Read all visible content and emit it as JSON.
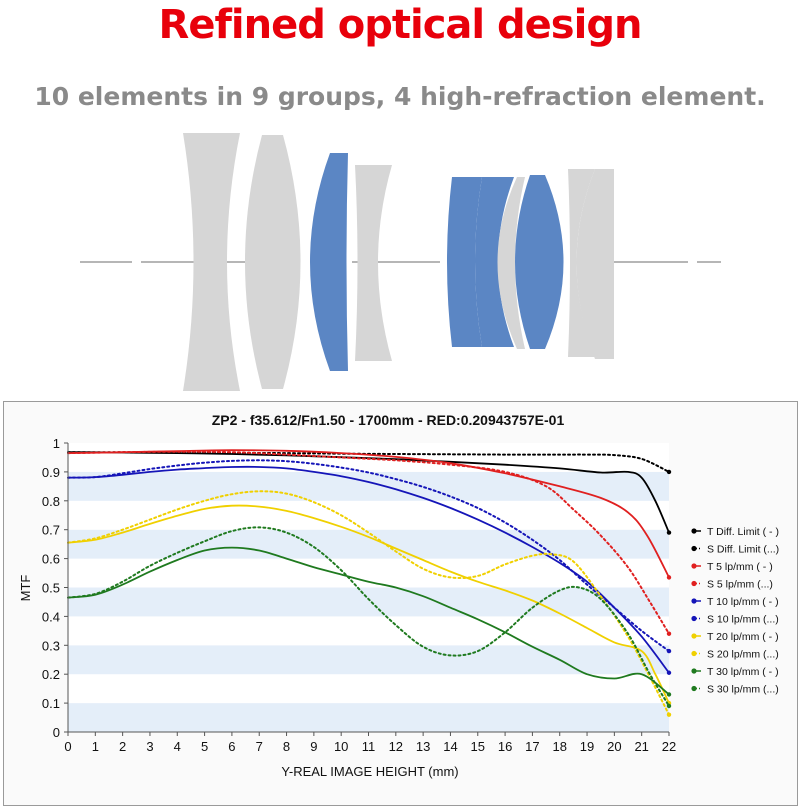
{
  "header": {
    "title": "Refined optical design",
    "subtitle": "10 elements in 9 groups, 4 high-refraction element."
  },
  "colors": {
    "title_red": "#e8000b",
    "subtitle_gray": "#8a8a8a",
    "lens_gray": "#d6d6d6",
    "lens_blue": "#5b86c4",
    "band_light_blue": "#e4eef9"
  },
  "lens_diagram": {
    "element_count": 10,
    "group_count": 9,
    "high_refraction_count": 4
  },
  "chart_data": {
    "type": "line",
    "title": "ZP2 - f35.612/Fn1.50 - 1700mm - RED:0.20943757E-01",
    "xlabel": "Y-REAL IMAGE HEIGHT (mm)",
    "ylabel": "MTF",
    "xlim": [
      0,
      22
    ],
    "ylim": [
      0,
      1
    ],
    "x_ticks": [
      "0",
      "1",
      "2",
      "3",
      "4",
      "5",
      "6",
      "7",
      "8",
      "9",
      "10",
      "11",
      "12",
      "13",
      "14",
      "15",
      "16",
      "17",
      "18",
      "19",
      "20",
      "21",
      "22"
    ],
    "y_ticks": [
      "0",
      "0.1",
      "0.2",
      "0.3",
      "0.4",
      "0.5",
      "0.6",
      "0.7",
      "0.8",
      "0.9",
      "1"
    ],
    "grid": "horizontal bands",
    "legend_position": "right",
    "series": [
      {
        "name": "T Diff. Limit ( - )",
        "color": "#000000",
        "dash": "solid",
        "points": [
          [
            0,
            0.968
          ],
          [
            2,
            0.967
          ],
          [
            4,
            0.965
          ],
          [
            6,
            0.962
          ],
          [
            8,
            0.957
          ],
          [
            10,
            0.951
          ],
          [
            12,
            0.944
          ],
          [
            14,
            0.935
          ],
          [
            16,
            0.925
          ],
          [
            18,
            0.912
          ],
          [
            19.5,
            0.898
          ],
          [
            20.5,
            0.9
          ],
          [
            21,
            0.88
          ],
          [
            21.5,
            0.8
          ],
          [
            22,
            0.69
          ]
        ]
      },
      {
        "name": "S Diff. Limit (...)",
        "color": "#000000",
        "dash": "dotted",
        "points": [
          [
            0,
            0.968
          ],
          [
            2,
            0.968
          ],
          [
            4,
            0.967
          ],
          [
            6,
            0.966
          ],
          [
            8,
            0.965
          ],
          [
            10,
            0.963
          ],
          [
            12,
            0.962
          ],
          [
            14,
            0.961
          ],
          [
            16,
            0.96
          ],
          [
            18,
            0.96
          ],
          [
            19,
            0.96
          ],
          [
            20,
            0.958
          ],
          [
            21,
            0.945
          ],
          [
            22,
            0.9
          ]
        ]
      },
      {
        "name": "T 5 lp/mm ( - )",
        "color": "#e02020",
        "dash": "solid",
        "points": [
          [
            0,
            0.965
          ],
          [
            2,
            0.968
          ],
          [
            4,
            0.972
          ],
          [
            6,
            0.975
          ],
          [
            8,
            0.973
          ],
          [
            10,
            0.965
          ],
          [
            12,
            0.952
          ],
          [
            14,
            0.93
          ],
          [
            16,
            0.895
          ],
          [
            18,
            0.85
          ],
          [
            19.5,
            0.81
          ],
          [
            20.5,
            0.76
          ],
          [
            21.2,
            0.68
          ],
          [
            22,
            0.535
          ]
        ]
      },
      {
        "name": "S 5 lp/mm (...)",
        "color": "#e02020",
        "dash": "dotted",
        "points": [
          [
            0,
            0.965
          ],
          [
            2,
            0.968
          ],
          [
            4,
            0.97
          ],
          [
            6,
            0.968
          ],
          [
            8,
            0.96
          ],
          [
            10,
            0.95
          ],
          [
            12,
            0.94
          ],
          [
            14,
            0.925
          ],
          [
            16,
            0.9
          ],
          [
            17.5,
            0.85
          ],
          [
            18.5,
            0.77
          ],
          [
            19.5,
            0.68
          ],
          [
            20.5,
            0.57
          ],
          [
            21.3,
            0.45
          ],
          [
            22,
            0.34
          ]
        ]
      },
      {
        "name": "T 10 lp/mm ( - )",
        "color": "#1515b8",
        "dash": "solid",
        "points": [
          [
            0,
            0.88
          ],
          [
            1,
            0.882
          ],
          [
            2,
            0.89
          ],
          [
            3,
            0.9
          ],
          [
            4,
            0.908
          ],
          [
            5,
            0.913
          ],
          [
            6,
            0.917
          ],
          [
            7,
            0.917
          ],
          [
            8,
            0.912
          ],
          [
            9,
            0.9
          ],
          [
            10,
            0.885
          ],
          [
            11,
            0.865
          ],
          [
            12,
            0.84
          ],
          [
            13,
            0.81
          ],
          [
            14,
            0.775
          ],
          [
            15,
            0.735
          ],
          [
            16,
            0.69
          ],
          [
            17,
            0.64
          ],
          [
            18,
            0.585
          ],
          [
            19,
            0.52
          ],
          [
            20,
            0.43
          ],
          [
            21,
            0.33
          ],
          [
            22,
            0.205
          ]
        ]
      },
      {
        "name": "S 10 lp/mm (...)",
        "color": "#1515b8",
        "dash": "dotted",
        "points": [
          [
            0,
            0.88
          ],
          [
            1,
            0.882
          ],
          [
            2,
            0.895
          ],
          [
            3,
            0.91
          ],
          [
            4,
            0.922
          ],
          [
            5,
            0.932
          ],
          [
            6,
            0.938
          ],
          [
            7,
            0.94
          ],
          [
            8,
            0.937
          ],
          [
            9,
            0.928
          ],
          [
            10,
            0.915
          ],
          [
            11,
            0.898
          ],
          [
            12,
            0.875
          ],
          [
            13,
            0.848
          ],
          [
            14,
            0.815
          ],
          [
            15,
            0.775
          ],
          [
            16,
            0.725
          ],
          [
            17,
            0.665
          ],
          [
            18,
            0.595
          ],
          [
            19,
            0.51
          ],
          [
            20,
            0.43
          ],
          [
            21,
            0.35
          ],
          [
            22,
            0.28
          ]
        ]
      },
      {
        "name": "T 20 lp/mm ( - )",
        "color": "#f0d000",
        "dash": "solid",
        "points": [
          [
            0,
            0.655
          ],
          [
            1,
            0.665
          ],
          [
            2,
            0.69
          ],
          [
            3,
            0.72
          ],
          [
            4,
            0.748
          ],
          [
            5,
            0.772
          ],
          [
            6,
            0.783
          ],
          [
            7,
            0.78
          ],
          [
            8,
            0.765
          ],
          [
            9,
            0.74
          ],
          [
            10,
            0.71
          ],
          [
            11,
            0.675
          ],
          [
            12,
            0.635
          ],
          [
            13,
            0.595
          ],
          [
            14,
            0.555
          ],
          [
            15,
            0.52
          ],
          [
            16,
            0.49
          ],
          [
            17,
            0.455
          ],
          [
            18,
            0.41
          ],
          [
            19,
            0.36
          ],
          [
            20,
            0.31
          ],
          [
            21,
            0.28
          ],
          [
            21.5,
            0.2
          ],
          [
            22,
            0.1
          ]
        ]
      },
      {
        "name": "S 20 lp/mm (...)",
        "color": "#f0d000",
        "dash": "dotted",
        "points": [
          [
            0,
            0.655
          ],
          [
            1,
            0.67
          ],
          [
            2,
            0.7
          ],
          [
            3,
            0.735
          ],
          [
            4,
            0.77
          ],
          [
            5,
            0.8
          ],
          [
            6,
            0.823
          ],
          [
            7,
            0.833
          ],
          [
            8,
            0.825
          ],
          [
            9,
            0.795
          ],
          [
            10,
            0.75
          ],
          [
            11,
            0.69
          ],
          [
            12,
            0.625
          ],
          [
            13,
            0.565
          ],
          [
            14,
            0.535
          ],
          [
            15,
            0.54
          ],
          [
            16,
            0.58
          ],
          [
            17,
            0.61
          ],
          [
            17.7,
            0.615
          ],
          [
            18.5,
            0.59
          ],
          [
            19.5,
            0.47
          ],
          [
            20.5,
            0.33
          ],
          [
            21.3,
            0.19
          ],
          [
            22,
            0.06
          ]
        ]
      },
      {
        "name": "T 30 lp/mm ( - )",
        "color": "#1f7a1f",
        "dash": "solid",
        "points": [
          [
            0,
            0.465
          ],
          [
            1,
            0.475
          ],
          [
            2,
            0.51
          ],
          [
            3,
            0.555
          ],
          [
            4,
            0.595
          ],
          [
            5,
            0.628
          ],
          [
            6,
            0.638
          ],
          [
            7,
            0.628
          ],
          [
            8,
            0.6
          ],
          [
            9,
            0.57
          ],
          [
            10,
            0.545
          ],
          [
            11,
            0.52
          ],
          [
            12,
            0.5
          ],
          [
            13,
            0.47
          ],
          [
            14,
            0.43
          ],
          [
            15,
            0.39
          ],
          [
            16,
            0.345
          ],
          [
            17,
            0.295
          ],
          [
            18,
            0.25
          ],
          [
            19,
            0.2
          ],
          [
            20,
            0.185
          ],
          [
            21,
            0.2
          ],
          [
            22,
            0.13
          ]
        ]
      },
      {
        "name": "S 30 lp/mm (...)",
        "color": "#1f7a1f",
        "dash": "dotted",
        "points": [
          [
            0,
            0.465
          ],
          [
            1,
            0.478
          ],
          [
            2,
            0.52
          ],
          [
            3,
            0.575
          ],
          [
            4,
            0.62
          ],
          [
            5,
            0.66
          ],
          [
            6,
            0.695
          ],
          [
            7,
            0.708
          ],
          [
            8,
            0.69
          ],
          [
            9,
            0.64
          ],
          [
            10,
            0.56
          ],
          [
            11,
            0.46
          ],
          [
            12,
            0.37
          ],
          [
            13,
            0.295
          ],
          [
            14,
            0.265
          ],
          [
            15,
            0.28
          ],
          [
            16,
            0.345
          ],
          [
            17,
            0.43
          ],
          [
            18,
            0.49
          ],
          [
            18.7,
            0.5
          ],
          [
            19.5,
            0.46
          ],
          [
            20.5,
            0.34
          ],
          [
            21.3,
            0.2
          ],
          [
            22,
            0.09
          ]
        ]
      }
    ]
  }
}
